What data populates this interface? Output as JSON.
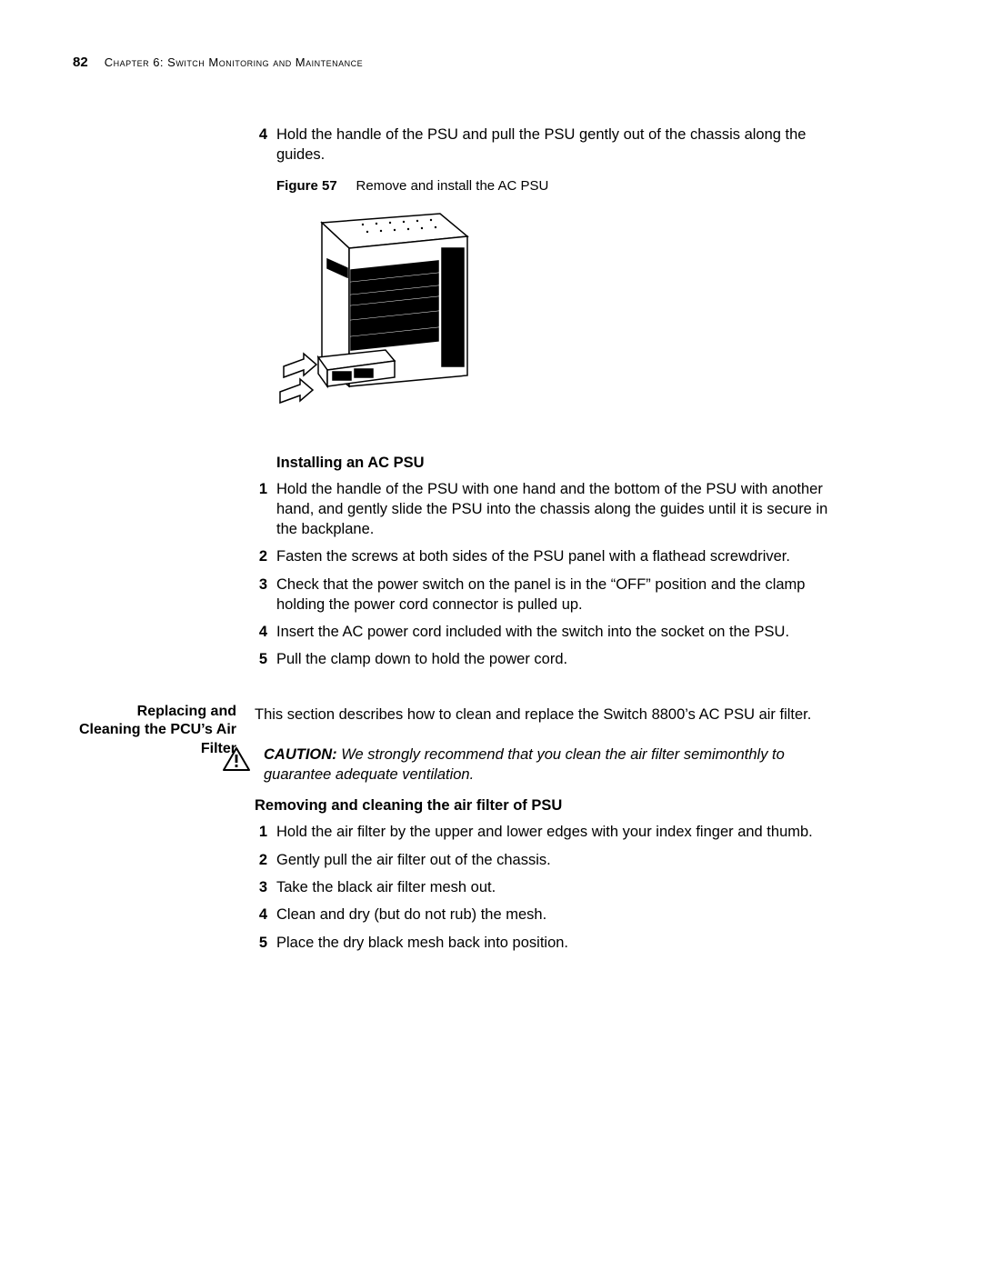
{
  "header": {
    "page_number": "82",
    "chapter_title": "Chapter 6: Switch Monitoring and Maintenance"
  },
  "pre_steps": [
    {
      "num": "4",
      "text": "Hold the handle of the PSU and pull the PSU gently out of the chassis along the guides."
    }
  ],
  "figure": {
    "label": "Figure 57",
    "caption": "Remove and install the AC PSU"
  },
  "install_section": {
    "heading": "Installing an AC PSU",
    "steps": [
      {
        "num": "1",
        "text": "Hold the handle of the PSU with one hand and the bottom of the PSU with another hand, and gently slide the PSU into the chassis along the guides until it is secure in the backplane."
      },
      {
        "num": "2",
        "text": "Fasten the screws at both sides of the PSU panel with a flathead screwdriver."
      },
      {
        "num": "3",
        "text": "Check that the power switch on the panel is in the “OFF” position and the clamp holding the power cord connector is pulled up."
      },
      {
        "num": "4",
        "text": "Insert the AC power cord included with the switch into the socket on the PSU."
      },
      {
        "num": "5",
        "text": "Pull the clamp down to hold the power cord."
      }
    ]
  },
  "replace_section": {
    "side_label": "Replacing and Cleaning the PCU’s Air Filter",
    "intro": "This section describes how to clean and replace the Switch 8800’s AC PSU air filter.",
    "caution_label": "CAUTION:",
    "caution_text": "We strongly recommend that you clean the air filter semimonthly to guarantee adequate ventilation.",
    "subheading": "Removing and cleaning the air filter of PSU",
    "steps": [
      {
        "num": "1",
        "text": "Hold the air filter by the upper and lower edges with your index finger and thumb."
      },
      {
        "num": "2",
        "text": "Gently pull the air filter out of the chassis."
      },
      {
        "num": "3",
        "text": "Take the black air filter mesh out."
      },
      {
        "num": "4",
        "text": "Clean and dry (but do not rub) the mesh."
      },
      {
        "num": "5",
        "text": "Place the dry black mesh back into position."
      }
    ]
  },
  "colors": {
    "text": "#000000",
    "background": "#ffffff"
  }
}
